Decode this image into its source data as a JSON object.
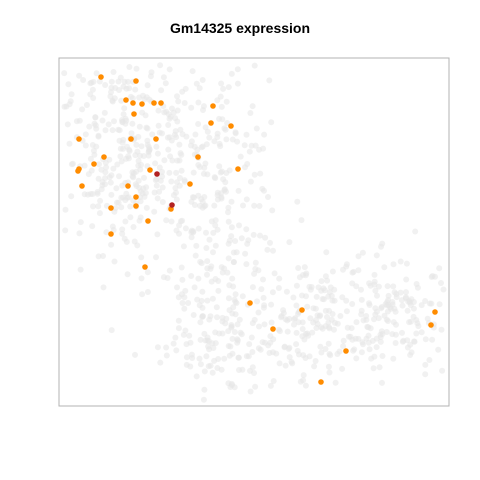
{
  "chart_data": {
    "type": "scatter",
    "title": "Gm14325 expression",
    "xlabel": "",
    "ylabel": "",
    "axes_visible": false,
    "grid": false,
    "legend": "none",
    "colors": {
      "background_cells": "#e6e6e6",
      "expressing": "#ff8c00",
      "high_expressing": "#b22222",
      "frame": "#b3b3b3"
    },
    "series": [
      {
        "level": "expressing",
        "color": "#ff8c00",
        "points": [
          [
            136,
            81
          ],
          [
            101,
            77
          ],
          [
            126,
            100
          ],
          [
            133,
            103
          ],
          [
            142,
            104
          ],
          [
            154,
            103
          ],
          [
            161,
            103
          ],
          [
            213,
            106
          ],
          [
            134,
            114
          ],
          [
            211,
            123
          ],
          [
            231,
            126
          ],
          [
            79,
            139
          ],
          [
            131,
            139
          ],
          [
            156,
            139
          ],
          [
            104,
            157
          ],
          [
            198,
            157
          ],
          [
            94,
            164
          ],
          [
            79,
            169
          ],
          [
            78,
            171
          ],
          [
            150,
            170
          ],
          [
            238,
            169
          ],
          [
            82,
            186
          ],
          [
            128,
            186
          ],
          [
            190,
            184
          ],
          [
            136,
            197
          ],
          [
            111,
            208
          ],
          [
            136,
            206
          ],
          [
            148,
            221
          ],
          [
            111,
            234
          ],
          [
            145,
            267
          ],
          [
            250,
            303
          ],
          [
            302,
            310
          ],
          [
            435,
            312
          ],
          [
            431,
            325
          ],
          [
            273,
            329
          ],
          [
            346,
            351
          ],
          [
            321,
            382
          ],
          [
            171,
            209
          ]
        ]
      },
      {
        "level": "high",
        "color": "#b22222",
        "points": [
          [
            157,
            174
          ],
          [
            172,
            205
          ]
        ]
      }
    ]
  }
}
